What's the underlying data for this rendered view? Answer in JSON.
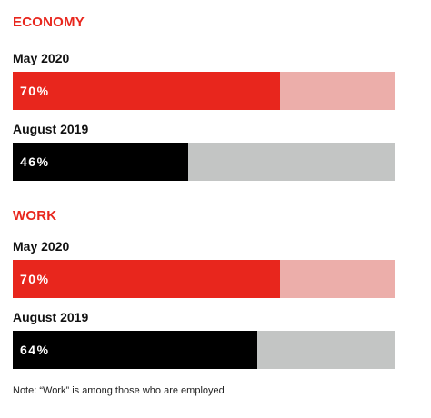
{
  "colors": {
    "accent": "#e8261d",
    "accent_light": "#ecaeaa",
    "dark": "#000000",
    "dark_track": "#c3c5c4"
  },
  "chart_data": [
    {
      "type": "bar",
      "orientation": "horizontal",
      "title": "ECONOMY",
      "categories": [
        "May 2020",
        "August 2019"
      ],
      "values": [
        70,
        46
      ],
      "value_labels": [
        "70%",
        "46%"
      ],
      "xlim": [
        0,
        100
      ],
      "grid": false
    },
    {
      "type": "bar",
      "orientation": "horizontal",
      "title": "WORK",
      "categories": [
        "May 2020",
        "August 2019"
      ],
      "values": [
        70,
        64
      ],
      "value_labels": [
        "70%",
        "64%"
      ],
      "xlim": [
        0,
        100
      ],
      "grid": false
    }
  ],
  "note": "Note: “Work” is among those who are employed"
}
